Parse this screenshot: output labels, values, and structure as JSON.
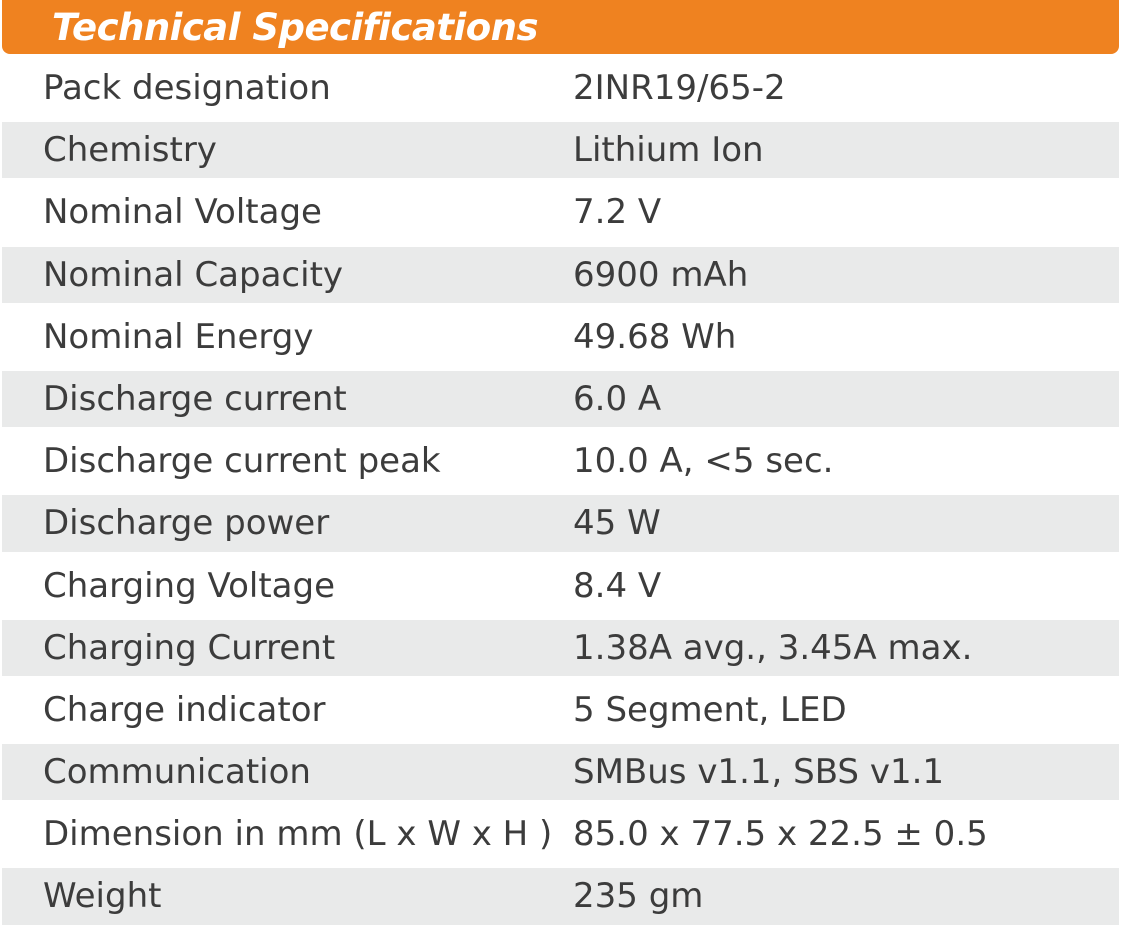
{
  "header": {
    "title": "Technical Specifications",
    "color": "#ef8220"
  },
  "specs": [
    {
      "label": "Pack designation",
      "value": "2INR19/65-2"
    },
    {
      "label": "Chemistry",
      "value": "Lithium Ion"
    },
    {
      "label": "Nominal Voltage",
      "value": "7.2 V"
    },
    {
      "label": "Nominal Capacity",
      "value": "6900 mAh"
    },
    {
      "label": "Nominal Energy",
      "value": "49.68 Wh"
    },
    {
      "label": "Discharge current",
      "value": "6.0 A"
    },
    {
      "label": "Discharge current peak",
      "value": "10.0 A, <5 sec."
    },
    {
      "label": "Discharge power",
      "value": "45 W"
    },
    {
      "label": "Charging Voltage",
      "value": "8.4 V"
    },
    {
      "label": "Charging Current",
      "value": "1.38A avg., 3.45A max."
    },
    {
      "label": "Charge indicator",
      "value": "5 Segment, LED"
    },
    {
      "label": "Communication",
      "value": "SMBus v1.1, SBS v1.1"
    },
    {
      "label": "Dimension in mm (L x W x H )",
      "value": "85.0 x 77.5 x 22.5 ± 0.5"
    },
    {
      "label": "Weight",
      "value": "235 gm"
    }
  ]
}
